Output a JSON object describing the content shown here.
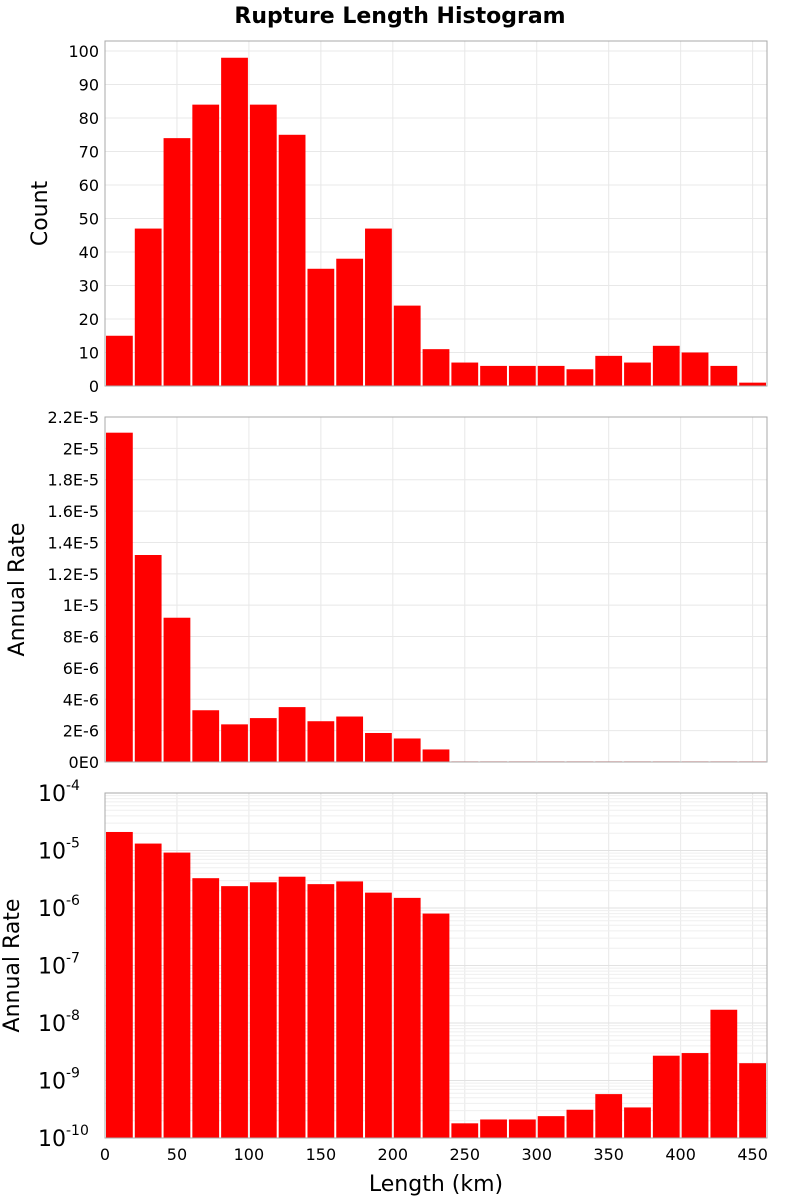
{
  "chart_data": {
    "type": "bar",
    "title": "Rupture Length Histogram",
    "xlabel": "Length (km)",
    "xlim": [
      0,
      460
    ],
    "bin_width": 20,
    "bin_centers": [
      10,
      30,
      50,
      70,
      90,
      110,
      130,
      150,
      170,
      190,
      210,
      230,
      250,
      270,
      290,
      310,
      330,
      350,
      370,
      390,
      410,
      430,
      450
    ],
    "x_ticks": [
      "0",
      "50",
      "100",
      "150",
      "200",
      "250",
      "300",
      "350",
      "400",
      "450"
    ],
    "bar_color": "#ff0000",
    "panels": [
      {
        "ylabel": "Count",
        "scale": "linear",
        "ylim": [
          0,
          103
        ],
        "y_ticks": [
          "0",
          "10",
          "20",
          "30",
          "40",
          "50",
          "60",
          "70",
          "80",
          "90",
          "100"
        ],
        "values": [
          15,
          47,
          74,
          84,
          98,
          84,
          75,
          35,
          38,
          47,
          24,
          11,
          7,
          6,
          6,
          6,
          5,
          9,
          7,
          12,
          10,
          6,
          1
        ]
      },
      {
        "ylabel": "Annual Rate",
        "scale": "linear",
        "ylim": [
          0,
          2.2e-05
        ],
        "y_ticks": [
          "0E0",
          "2E-6",
          "4E-6",
          "6E-6",
          "8E-6",
          "1E-5",
          "1.2E-5",
          "1.4E-5",
          "1.6E-5",
          "1.8E-5",
          "2E-5",
          "2.2E-5"
        ],
        "values": [
          2.1e-05,
          1.32e-05,
          9.2e-06,
          3.3e-06,
          2.4e-06,
          2.8e-06,
          3.5e-06,
          2.6e-06,
          2.9e-06,
          1.85e-06,
          1.5e-06,
          8e-07,
          1.8e-10,
          2.1e-10,
          2.1e-10,
          2.4e-10,
          3.1e-10,
          5.8e-10,
          3.4e-10,
          2.7e-09,
          3e-09,
          1.7e-08,
          2e-09
        ]
      },
      {
        "ylabel": "Annual Rate",
        "scale": "log",
        "ylim": [
          1e-10,
          0.0001
        ],
        "y_tick_base": "10",
        "y_tick_exponents": [
          "-10",
          "-9",
          "-8",
          "-7",
          "-6",
          "-5",
          "-4"
        ],
        "values": [
          2.1e-05,
          1.32e-05,
          9.2e-06,
          3.3e-06,
          2.4e-06,
          2.8e-06,
          3.5e-06,
          2.6e-06,
          2.9e-06,
          1.85e-06,
          1.5e-06,
          8e-07,
          1.8e-10,
          2.1e-10,
          2.1e-10,
          2.4e-10,
          3.1e-10,
          5.8e-10,
          3.4e-10,
          2.7e-09,
          3e-09,
          1.7e-08,
          2e-09
        ]
      }
    ]
  }
}
